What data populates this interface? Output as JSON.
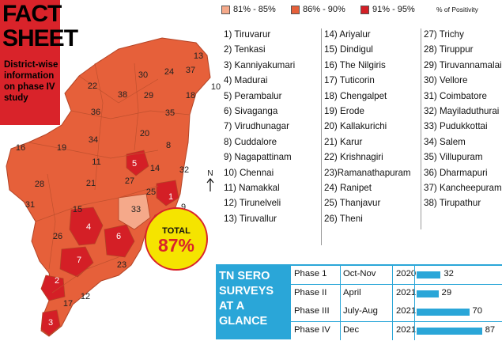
{
  "factsheet": {
    "title_line1": "FACT",
    "title_line2": "SHEET",
    "subtitle": "District-wise information on phase IV study"
  },
  "legend": {
    "items": [
      {
        "label": "81% - 85%",
        "color": "#f5a98a"
      },
      {
        "label": "86% - 90%",
        "color": "#e6603a"
      },
      {
        "label": "91% - 95%",
        "color": "#d41f26"
      }
    ],
    "positivity_label": "% of Positivity"
  },
  "districts": [
    "1) Tiruvarur",
    "2) Tenkasi",
    "3) Kanniyakumari",
    "4) Madurai",
    "5) Perambalur",
    "6) Sivaganga",
    "7) Virudhunagar",
    "8) Cuddalore",
    "9) Nagapattinam",
    "10) Chennai",
    "11) Namakkal",
    "12) Tirunelveli",
    "13) Tiruvallur",
    "14) Ariyalur",
    "15) Dindigul",
    "16) The Nilgiris",
    "17) Tuticorin",
    "18) Chengalpet",
    "19) Erode",
    "20) Kallakurichi",
    "21) Karur",
    "22) Krishnagiri",
    "23)Ramanathapuram",
    "24) Ranipet",
    "25) Thanjavur",
    "26) Theni",
    "27) Trichy",
    "28) Tiruppur",
    "29) Tiruvannamalai",
    "30) Vellore",
    "31) Coimbatore",
    "32) Mayiladuthurai",
    "33) Pudukkottai",
    "34) Salem",
    "35) Villupuram",
    "36) Dharmapuri",
    "37) Kancheepuram",
    "38) Tirupathur"
  ],
  "map_labels": [
    {
      "n": "1",
      "tier": 3
    },
    {
      "n": "2",
      "tier": 3
    },
    {
      "n": "3",
      "tier": 3
    },
    {
      "n": "4",
      "tier": 3
    },
    {
      "n": "5",
      "tier": 3
    },
    {
      "n": "6",
      "tier": 3
    },
    {
      "n": "7",
      "tier": 3
    },
    {
      "n": "8",
      "tier": 2
    },
    {
      "n": "9",
      "tier": 2
    },
    {
      "n": "10",
      "tier": 2
    },
    {
      "n": "11",
      "tier": 2
    },
    {
      "n": "12",
      "tier": 2
    },
    {
      "n": "13",
      "tier": 2
    },
    {
      "n": "14",
      "tier": 2
    },
    {
      "n": "15",
      "tier": 2
    },
    {
      "n": "16",
      "tier": 2
    },
    {
      "n": "17",
      "tier": 2
    },
    {
      "n": "18",
      "tier": 2
    },
    {
      "n": "19",
      "tier": 2
    },
    {
      "n": "20",
      "tier": 2
    },
    {
      "n": "21",
      "tier": 2
    },
    {
      "n": "22",
      "tier": 2
    },
    {
      "n": "23",
      "tier": 2
    },
    {
      "n": "24",
      "tier": 2
    },
    {
      "n": "25",
      "tier": 2
    },
    {
      "n": "26",
      "tier": 2
    },
    {
      "n": "27",
      "tier": 2
    },
    {
      "n": "28",
      "tier": 2
    },
    {
      "n": "29",
      "tier": 2
    },
    {
      "n": "30",
      "tier": 2
    },
    {
      "n": "31",
      "tier": 2
    },
    {
      "n": "32",
      "tier": 2
    },
    {
      "n": "33",
      "tier": 1
    },
    {
      "n": "34",
      "tier": 2
    },
    {
      "n": "35",
      "tier": 2
    },
    {
      "n": "36",
      "tier": 2
    },
    {
      "n": "37",
      "tier": 2
    },
    {
      "n": "38",
      "tier": 2
    }
  ],
  "total": {
    "label": "TOTAL",
    "value": "87%"
  },
  "compass": {
    "label": "N"
  },
  "sero": {
    "title_lines": [
      "TN SERO",
      "SURVEYS",
      "AT A",
      "GLANCE"
    ],
    "bar_color": "#2aa6d8",
    "rows": [
      {
        "phase": "Phase 1",
        "period": "Oct-Nov",
        "year": "2020",
        "value": 32
      },
      {
        "phase": "Phase II",
        "period": "April",
        "year": "2021",
        "value": 29
      },
      {
        "phase": "Phase III",
        "period": "July-Aug",
        "year": "2021",
        "value": 70
      },
      {
        "phase": "Phase IV",
        "period": "Dec",
        "year": "2021",
        "value": 87
      }
    ]
  }
}
